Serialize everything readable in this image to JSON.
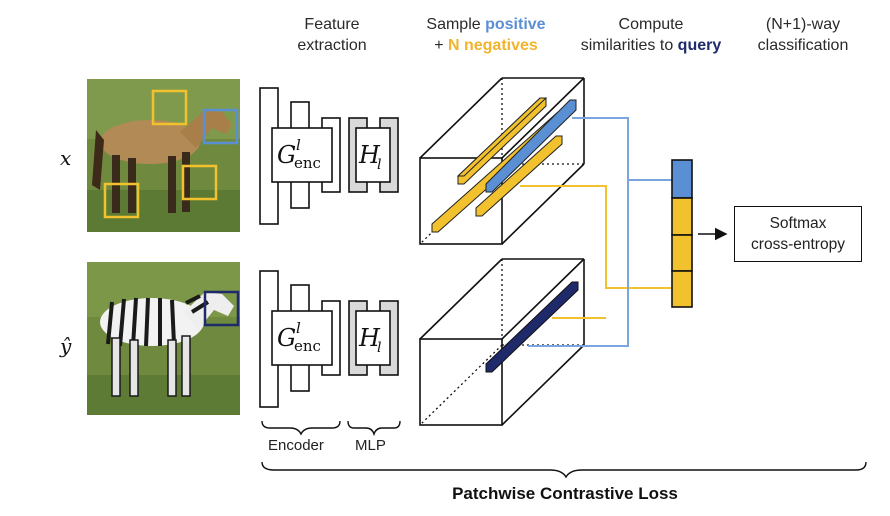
{
  "header": {
    "feature_line1": "Feature",
    "feature_line2": "extraction",
    "sample_word": "Sample",
    "positive_word": "positive",
    "plus": "+",
    "negatives_word": "N negatives",
    "compute_line1": "Compute",
    "compute_line2_prefix": "similarities to",
    "query_word": "query",
    "nway_line1": "(N+1)-way",
    "nway_line2": "classification"
  },
  "inputs": {
    "x_label": "x",
    "y_label": "ŷ"
  },
  "modules": {
    "encoder_symbol": "G",
    "encoder_sup": "l",
    "encoder_sub": "enc",
    "mlp_symbol": "H",
    "mlp_sub": "l"
  },
  "labels": {
    "encoder": "Encoder",
    "mlp": "MLP"
  },
  "softmax": {
    "line1": "Softmax",
    "line2": "cross-entropy"
  },
  "footer": "Patchwise Contrastive Loss",
  "colors": {
    "positive": "#5b8fd3",
    "negative": "#f2c12e",
    "query": "#1f2a6b",
    "mlp_fill": "#d9d9d9"
  }
}
